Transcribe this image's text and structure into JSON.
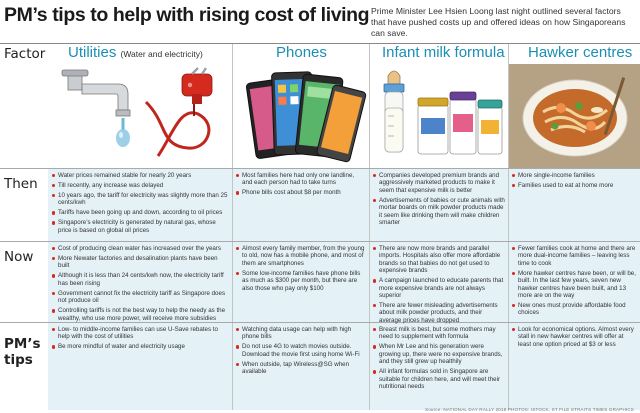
{
  "header": {
    "title": "PM’s tips to help with rising cost of living",
    "intro": "Prime Minister Lee Hsien Loong last night outlined several factors that have pushed costs up and offered ideas on how Singaporeans can save."
  },
  "row_labels": {
    "factor": "Factor",
    "then": "Then",
    "now": "Now",
    "tips_line1": "PM’s",
    "tips_line2": "tips"
  },
  "columns": [
    {
      "heading": "Utilities",
      "sub": "(Water and electricity)",
      "then": [
        "Water prices remained stable for nearly 20 years",
        "Till recently, any increase was delayed",
        "10 years ago, the tariff for electricity was slightly more than 25 cents/kwh",
        "Tariffs have been going up and down, according to oil prices",
        "Singapore’s electricity is generated by natural gas, whose price is based on global oil prices"
      ],
      "now": [
        "Cost of producing clean water has increased over the years",
        "More Newater factories and desalination plants have been built",
        "Although it is less than 24 cents/kwh now, the electricity tariff has been rising",
        "Government cannot fix the electricity tariff as Singapore does not produce oil",
        "Controlling tariffs is not the best way to help the needy as the wealthy, who use more power, will receive more subsidies"
      ],
      "tips": [
        "Low- to middle-income families can use U-Save rebates to help with the cost of utilities",
        "Be more mindful of water and electricity usage"
      ]
    },
    {
      "heading": "Phones",
      "sub": "",
      "then": [
        "Most families here had only one landline, and each person had to take turns",
        "Phone bills cost about $8 per month"
      ],
      "now": [
        "Almost every family member, from the young to old, now has a mobile phone, and most of them are smartphones",
        "Some low-income families have phone bills as much as $300 per month, but there are also those who pay only $100"
      ],
      "tips": [
        "Watching data usage can help with high phone bills",
        "Do not use 4G to watch movies outside. Download the movie first using home Wi-Fi",
        "When outside, tap Wireless@SG when available"
      ]
    },
    {
      "heading": "Infant milk formula",
      "sub": "",
      "then": [
        "Companies developed premium brands and aggressively marketed products to make it seem that expensive milk is better",
        "Advertisements of babies or cute animals with mortar boards on milk powder products made it seem like drinking them will make children smarter"
      ],
      "now": [
        "There are now more brands and parallel imports. Hospitals also offer more affordable brands so that babies do not get used to expensive brands",
        "A campaign launched to educate parents that more expensive brands are not always superior",
        "There are fewer misleading advertisements about milk powder products, and their average prices have dropped"
      ],
      "tips": [
        "Breast milk is best, but some mothers may need to supplement with formula",
        "When Mr Lee and his generation were growing up, there were no expensive brands, and they still grew up healthily",
        "All infant formulas sold in Singapore are suitable for children here, and will meet their nutritional needs"
      ]
    },
    {
      "heading": "Hawker centres",
      "sub": "",
      "then": [
        "More single-income families",
        "Families used to eat at home more"
      ],
      "now": [
        "Fewer families cook at home and there are more dual-income families – leaving less time to cook",
        "More hawker centres have been, or will be, built. In the last few years, seven new hawker centres have been built, and 13 more are on the way",
        "New ones must provide affordable food choices"
      ],
      "tips": [
        "Look for economical options. Almost every stall in new hawker centres will offer at least one option priced at $3 or less"
      ]
    }
  ],
  "source": "Source: NATIONAL DAY RALLY 2018  PHOTOS: ISTOCK, ST FILE  STRAITS TIMES GRAPHICS",
  "colors": {
    "accent": "#1a8fb4",
    "bullet": "#d52a1e",
    "band": "#e4f1f7"
  }
}
